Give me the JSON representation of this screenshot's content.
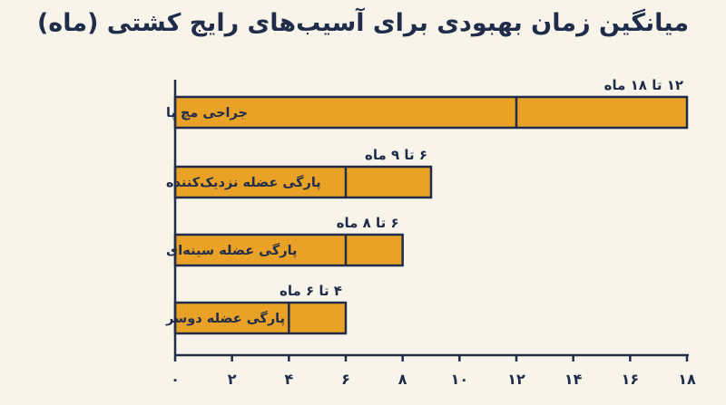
{
  "title": "میانگین زمان بهبودی برای آسیب‌های رایج کشتی (ماه)",
  "colors": {
    "bar": "#e9a126",
    "ink": "#1f2d4b",
    "background": "#f8f4ea"
  },
  "chart_data": {
    "type": "bar",
    "orientation": "horizontal",
    "title": "میانگین زمان بهبودی برای آسیب‌های رایج کشتی (ماه)",
    "xlabel": "",
    "ylabel": "",
    "xlim": [
      0,
      18
    ],
    "categories": [
      "جراحی مچ پا",
      "پارگی عضله نزدیک‌کننده",
      "پارگی عضله سینه‌ای",
      "پارگی عضله دوسر"
    ],
    "ranges": [
      [
        12,
        18
      ],
      [
        6,
        9
      ],
      [
        6,
        8
      ],
      [
        4,
        6
      ]
    ],
    "data_labels": [
      "۱۲ تا ۱۸ ماه",
      "۶ تا ۹ ماه",
      "۶ تا ۸ ماه",
      "۴ تا ۶ ماه"
    ],
    "ticks": [
      0,
      2,
      4,
      6,
      8,
      10,
      12,
      14,
      16,
      18
    ],
    "tick_labels": [
      "۰",
      "۲",
      "۴",
      "۶",
      "۸",
      "۱۰",
      "۱۲",
      "۱۴",
      "۱۶",
      "۱۸"
    ],
    "grid": false,
    "legend": "none"
  }
}
